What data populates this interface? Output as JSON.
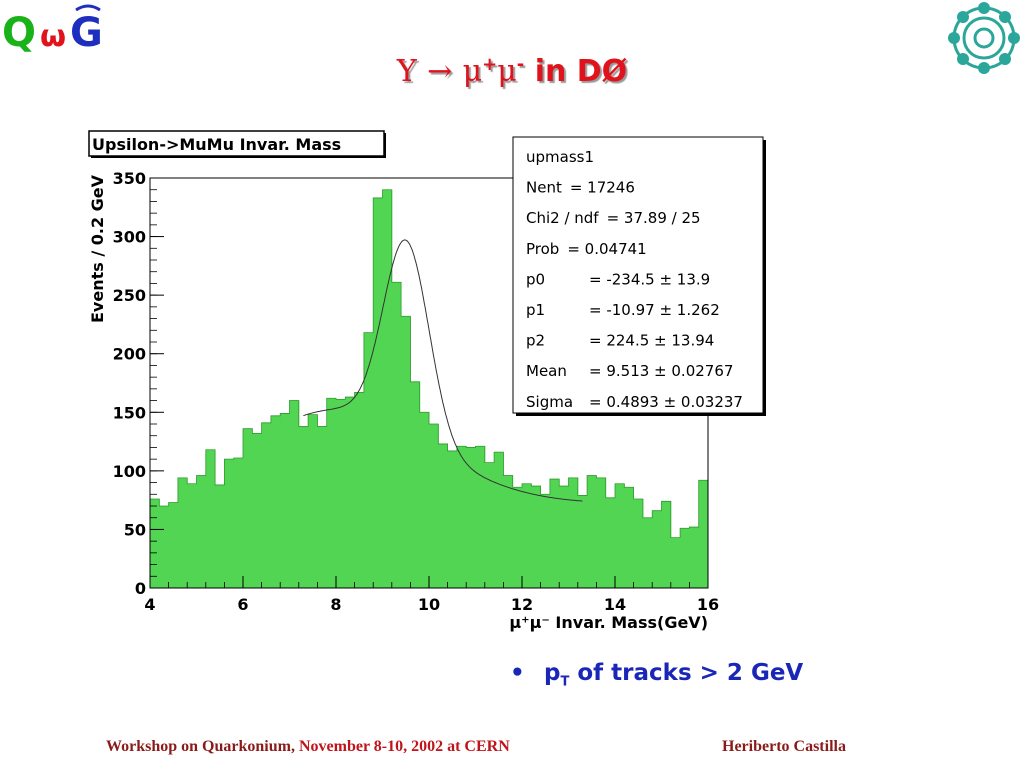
{
  "slide": {
    "title_symbol": "Υ",
    "title_arrow": "→",
    "title_mu": "μ",
    "title_plus": "+",
    "title_minus": "-",
    "title_tail": " in DØ",
    "bullet_p": "p",
    "bullet_sub": "T",
    "bullet_text": " of tracks > 2 GeV",
    "footer_left_a": "Workshop on Quarkonium, ",
    "footer_left_b": "November 8-10, 2002 at CERN",
    "footer_right": "Heriberto Castilla",
    "logo_text": "QWG"
  },
  "colors": {
    "title": "#e0121b",
    "bullet": "#1a26b8",
    "footer": "#8b1a1a",
    "histogram_fill": "#52d552",
    "fit_line": "#333333",
    "seal": "#2aa69a"
  },
  "chart_data": {
    "type": "bar",
    "title": "Upsilon->MuMu Invar. Mass",
    "xlabel": "μ⁺μ⁻ Invar. Mass(GeV)",
    "ylabel": "Events / 0.2 GeV",
    "xlim": [
      4,
      16
    ],
    "ylim": [
      0,
      350
    ],
    "xticks": [
      "4",
      "6",
      "8",
      "10",
      "12",
      "14",
      "16"
    ],
    "yticks": [
      "0",
      "50",
      "100",
      "150",
      "200",
      "250",
      "300",
      "350"
    ],
    "bin_width": 0.2,
    "bin_start": 4.0,
    "values": [
      76,
      70,
      73,
      94,
      89,
      96,
      118,
      88,
      110,
      111,
      136,
      132,
      141,
      147,
      149,
      160,
      138,
      148,
      138,
      162,
      161,
      163,
      167,
      218,
      333,
      340,
      261,
      232,
      176,
      150,
      140,
      123,
      117,
      121,
      120,
      121,
      107,
      116,
      96,
      86,
      89,
      87,
      80,
      93,
      87,
      94,
      79,
      96,
      94,
      77,
      89,
      86,
      76,
      60,
      66,
      74,
      43,
      51,
      52,
      92
    ],
    "grid": false,
    "stats_box": {
      "entries": [
        {
          "label": "upmass1",
          "value": ""
        },
        {
          "label": "Nent",
          "value": "= 17246"
        },
        {
          "label": "Chi2 / ndf",
          "value": "= 37.89 / 25"
        },
        {
          "label": "Prob",
          "value": "= 0.04741"
        },
        {
          "label": "p0",
          "value": "= -234.5 ± 13.9"
        },
        {
          "label": "p1",
          "value": "= -10.97 ± 1.262"
        },
        {
          "label": "p2",
          "value": "= 224.5 ± 13.94"
        },
        {
          "label": "Mean",
          "value": "= 9.513 ± 0.02767"
        },
        {
          "label": "Sigma",
          "value": "= 0.4893 ± 0.03237"
        }
      ]
    }
  }
}
